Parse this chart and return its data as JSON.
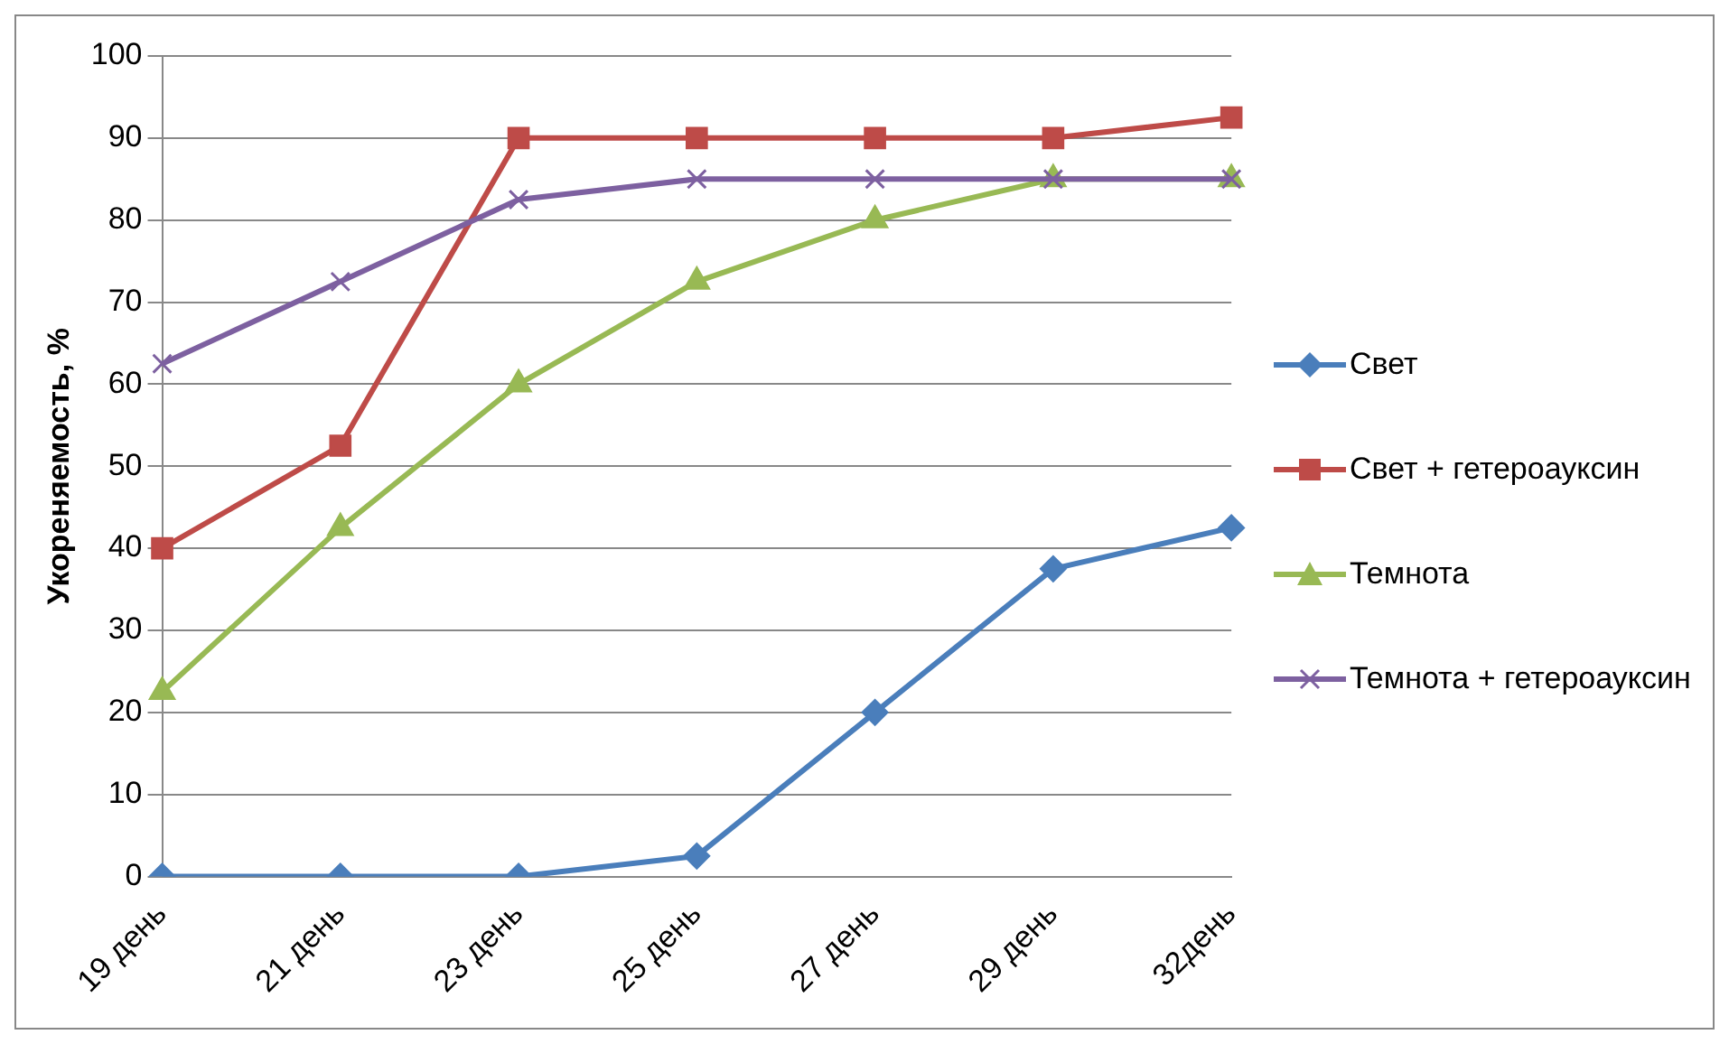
{
  "chart_data": {
    "type": "line",
    "ylabel": "Укореняемость, %",
    "categories": [
      "19 день",
      "21 день",
      "23 день",
      "25 день",
      "27 день",
      "29 день",
      "32день"
    ],
    "series": [
      {
        "name": "Свет",
        "color": "#4a7ebb",
        "marker": "diamond",
        "values": [
          0,
          0,
          0,
          2.5,
          20,
          37.5,
          42.5
        ]
      },
      {
        "name": "Свет + гетероауксин",
        "color": "#be4b48",
        "marker": "square",
        "values": [
          40,
          52.5,
          90,
          90,
          90,
          90,
          92.5
        ]
      },
      {
        "name": "Темнота",
        "color": "#98b954",
        "marker": "triangle",
        "values": [
          22.5,
          42.5,
          60,
          72.5,
          80,
          85,
          85
        ]
      },
      {
        "name": "Темнота + гетероауксин",
        "color": "#7d60a0",
        "marker": "cross",
        "values": [
          62.5,
          72.5,
          82.5,
          85,
          85,
          85,
          85
        ]
      }
    ],
    "ylim": [
      0,
      100
    ],
    "yticks": [
      0,
      10,
      20,
      30,
      40,
      50,
      60,
      70,
      80,
      90,
      100
    ],
    "grid": "y",
    "legend": "right"
  }
}
